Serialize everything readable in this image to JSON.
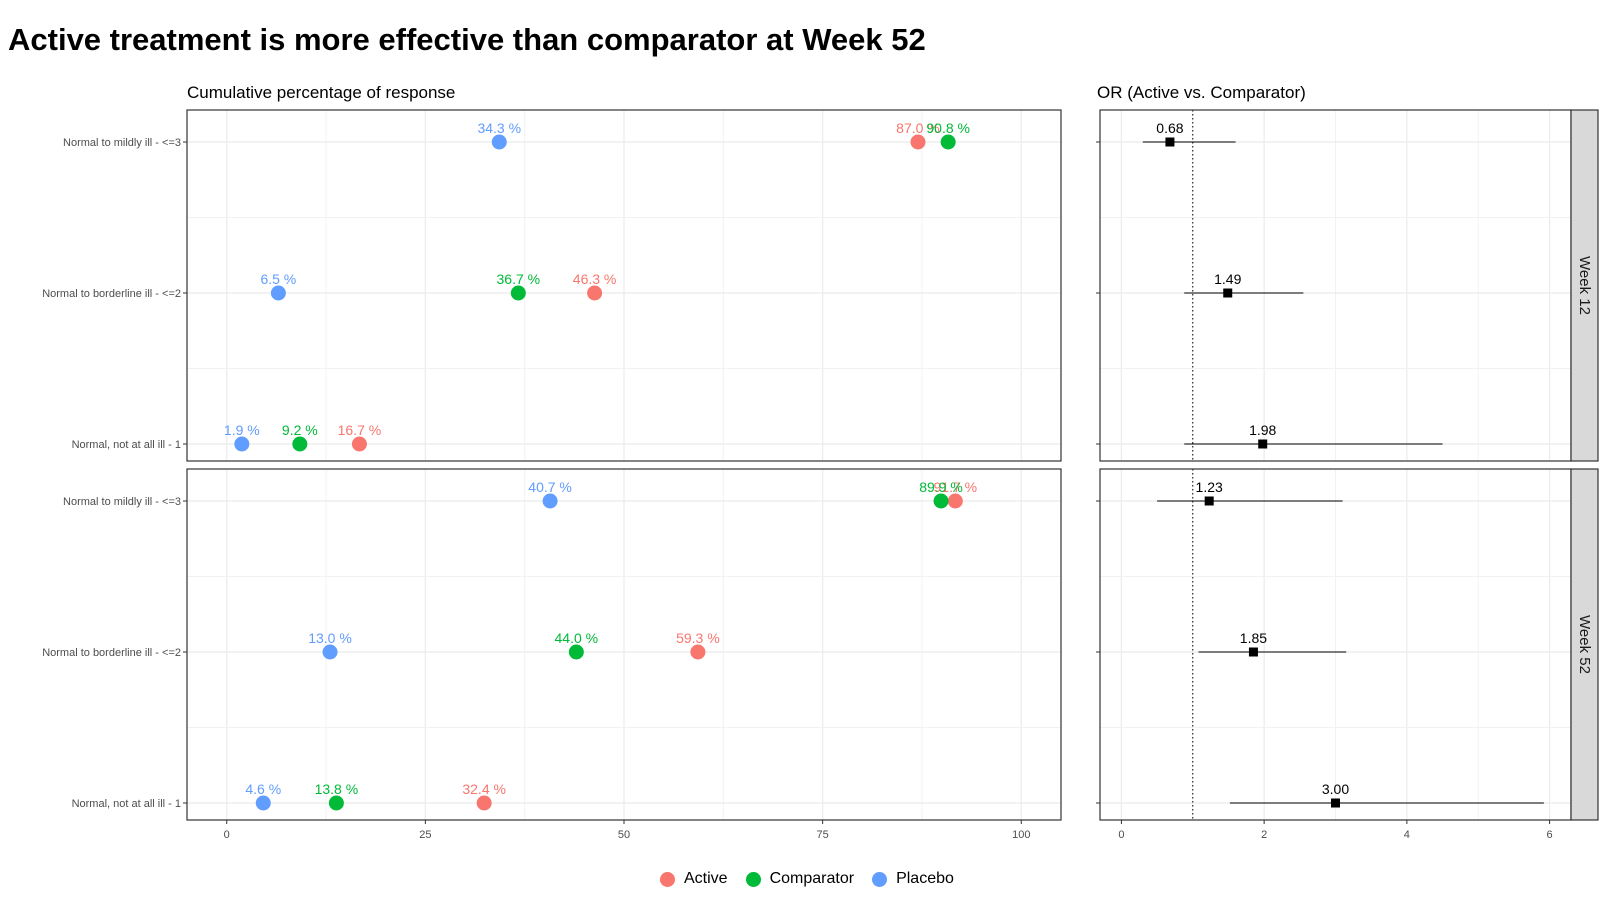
{
  "title": "Active treatment is more effective than comparator at Week 52",
  "colors": {
    "Active": "#F8766D",
    "Comparator": "#00BA38",
    "Placebo": "#619CFF"
  },
  "chart_data": [
    {
      "type": "scatter",
      "subtitle": "Cumulative percentage of response",
      "categories": [
        "Normal to mildly ill - <=3",
        "Normal to borderline ill - <=2",
        "Normal, not at all ill -   1"
      ],
      "xlim": [
        -5,
        105
      ],
      "xticks": [
        0,
        25,
        50,
        75,
        100
      ],
      "grid": true,
      "legend": "bottom",
      "panels": [
        {
          "name": "Week 12",
          "series": [
            {
              "name": "Active",
              "values": [
                87.0,
                46.3,
                16.7
              ],
              "labels": [
                "87.0 %",
                "46.3 %",
                "16.7 %"
              ]
            },
            {
              "name": "Comparator",
              "values": [
                90.8,
                36.7,
                9.2
              ],
              "labels": [
                "90.8 %",
                "36.7 %",
                "9.2 %"
              ]
            },
            {
              "name": "Placebo",
              "values": [
                34.3,
                6.5,
                1.9
              ],
              "labels": [
                "34.3 %",
                "6.5 %",
                "1.9 %"
              ]
            }
          ]
        },
        {
          "name": "Week 52",
          "series": [
            {
              "name": "Active",
              "values": [
                91.7,
                59.3,
                32.4
              ],
              "labels": [
                "91.7 %",
                "59.3 %",
                "32.4 %"
              ]
            },
            {
              "name": "Comparator",
              "values": [
                89.9,
                44.0,
                13.8
              ],
              "labels": [
                "89.9 %",
                "44.0 %",
                "13.8 %"
              ]
            },
            {
              "name": "Placebo",
              "values": [
                40.7,
                13.0,
                4.6
              ],
              "labels": [
                "40.7 %",
                "13.0 %",
                "4.6 %"
              ]
            }
          ]
        }
      ]
    },
    {
      "type": "scatter",
      "subtitle": "OR (Active vs. Comparator)",
      "reference_line": 1,
      "xticks": [
        0,
        2,
        4,
        6
      ],
      "xlim": [
        -0.3,
        6.3
      ],
      "grid": true,
      "panels": [
        {
          "name": "Week 12",
          "points": [
            {
              "or": 0.68,
              "label": "0.68",
              "lower": 0.3,
              "upper": 1.6
            },
            {
              "or": 1.49,
              "label": "1.49",
              "lower": 0.88,
              "upper": 2.55
            },
            {
              "or": 1.98,
              "label": "1.98",
              "lower": 0.88,
              "upper": 4.5
            }
          ]
        },
        {
          "name": "Week 52",
          "points": [
            {
              "or": 1.23,
              "label": "1.23",
              "lower": 0.5,
              "upper": 3.1
            },
            {
              "or": 1.85,
              "label": "1.85",
              "lower": 1.08,
              "upper": 3.15
            },
            {
              "or": 3.0,
              "label": "3.00",
              "lower": 1.52,
              "upper": 5.92
            }
          ]
        }
      ]
    }
  ]
}
